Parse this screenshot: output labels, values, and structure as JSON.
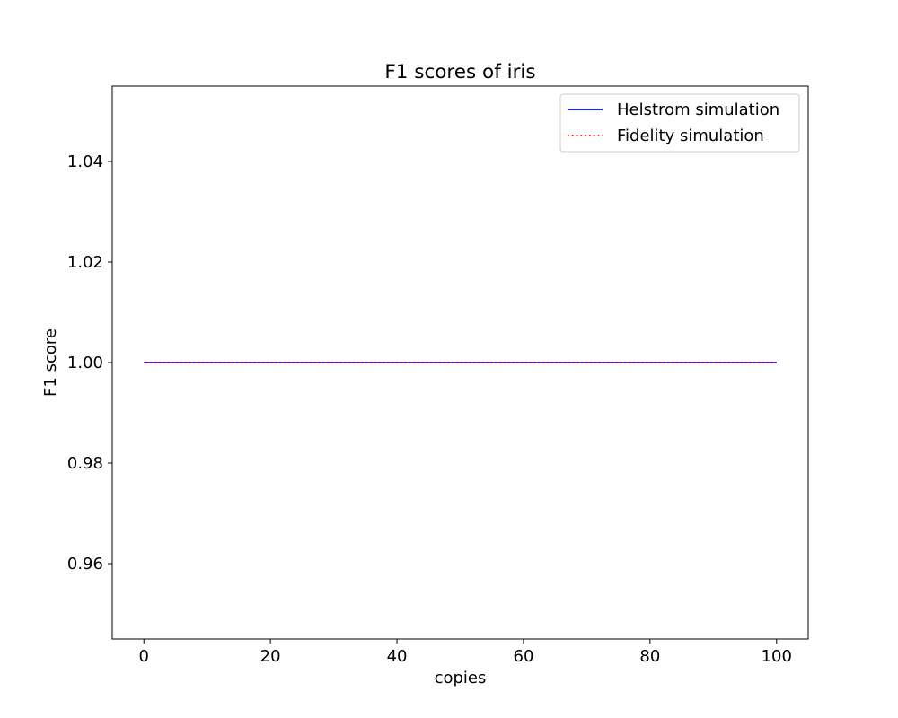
{
  "chart_data": {
    "type": "line",
    "title": "F1 scores of iris",
    "xlabel": "copies",
    "ylabel": "F1 score",
    "xlim": [
      -5,
      105
    ],
    "ylim": [
      0.945,
      1.055
    ],
    "x_ticks": [
      0,
      20,
      40,
      60,
      80,
      100
    ],
    "y_ticks": [
      0.96,
      0.98,
      1.0,
      1.02,
      1.04
    ],
    "x_tick_labels": [
      "0",
      "20",
      "40",
      "60",
      "80",
      "100"
    ],
    "y_tick_labels": [
      "0.96",
      "0.98",
      "1.00",
      "1.02",
      "1.04"
    ],
    "grid": false,
    "legend_position": "top-right",
    "series": [
      {
        "name": "Helstrom simulation",
        "color": "#0000ff",
        "style": "solid",
        "x": [
          0,
          100
        ],
        "y": [
          1.0,
          1.0
        ]
      },
      {
        "name": "Fidelity simulation",
        "color": "#ff0000",
        "style": "dotted",
        "x": [
          0,
          100
        ],
        "y": [
          1.0,
          1.0
        ]
      }
    ]
  }
}
